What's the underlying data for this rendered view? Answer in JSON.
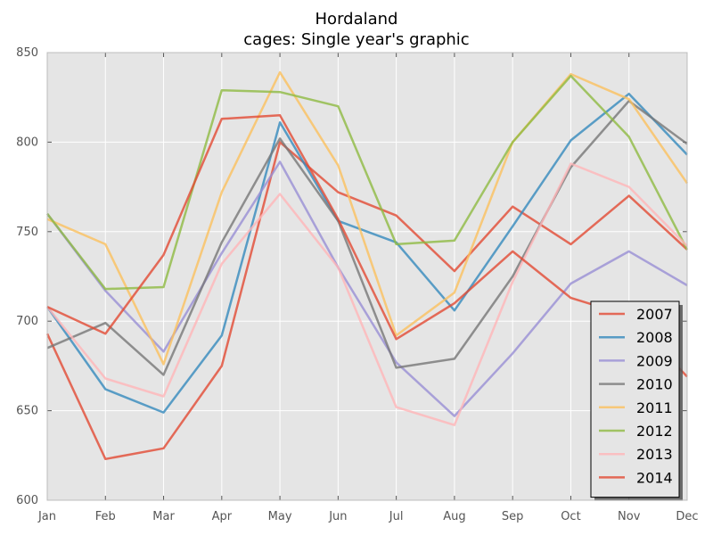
{
  "chart_data": {
    "type": "line",
    "title": "Hordaland",
    "subtitle": "cages: Single year's graphic",
    "xlabel": "",
    "ylabel": "",
    "categories": [
      "Jan",
      "Feb",
      "Mar",
      "Apr",
      "May",
      "Jun",
      "Jul",
      "Aug",
      "Sep",
      "Oct",
      "Nov",
      "Dec"
    ],
    "ylim": [
      600,
      850
    ],
    "yticks": [
      600,
      650,
      700,
      750,
      800,
      850
    ],
    "grid": true,
    "legend_position": "lower-right",
    "background": "#e5e5e5",
    "series": [
      {
        "name": "2007",
        "color": "#e24a33",
        "values": [
          693,
          623,
          629,
          675,
          800,
          772,
          759,
          728,
          764,
          743,
          770,
          740
        ]
      },
      {
        "name": "2008",
        "color": "#348abd",
        "values": [
          708,
          662,
          649,
          692,
          811,
          756,
          744,
          706,
          753,
          801,
          827,
          793
        ]
      },
      {
        "name": "2009",
        "color": "#988ed5",
        "values": [
          760,
          717,
          683,
          738,
          789,
          730,
          677,
          647,
          682,
          721,
          739,
          720
        ]
      },
      {
        "name": "2010",
        "color": "#777777",
        "values": [
          685,
          699,
          670,
          744,
          802,
          756,
          674,
          679,
          725,
          786,
          823,
          799
        ]
      },
      {
        "name": "2011",
        "color": "#fbc15e",
        "values": [
          757,
          743,
          676,
          772,
          839,
          787,
          692,
          716,
          800,
          838,
          824,
          777
        ]
      },
      {
        "name": "2012",
        "color": "#8eba42",
        "values": [
          760,
          718,
          719,
          829,
          828,
          820,
          743,
          745,
          800,
          837,
          803,
          740
        ]
      },
      {
        "name": "2013",
        "color": "#ffb5b8",
        "values": [
          708,
          668,
          658,
          732,
          771,
          730,
          652,
          642,
          722,
          788,
          775,
          742
        ]
      },
      {
        "name": "2014",
        "color": "#e24a33",
        "values": [
          708,
          693,
          737,
          813,
          815,
          757,
          690,
          710,
          739,
          713,
          703,
          669
        ]
      }
    ]
  }
}
